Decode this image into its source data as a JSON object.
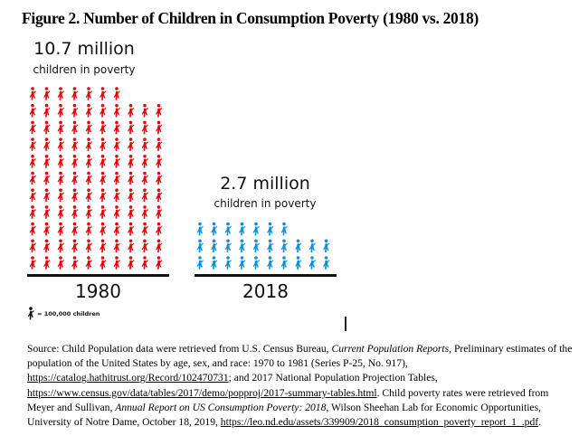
{
  "figure_title": "Figure 2. Number of Children in Consumption Poverty (1980 vs. 2018)",
  "chart_data": {
    "type": "pictogram",
    "title": "Figure 2. Number of Children in Consumption Poverty (1980 vs. 2018)",
    "unit_per_icon": 100000,
    "legend_label": "= 100,000 children",
    "icons_per_row": 10,
    "categories": [
      "1980",
      "2018"
    ],
    "series": [
      {
        "name": "1980",
        "value_millions": 10.7,
        "icon_count": 107,
        "headline": "10.7 million",
        "subheadline": "children in poverty",
        "color": "#e8000b"
      },
      {
        "name": "2018",
        "value_millions": 2.7,
        "icon_count": 27,
        "headline": "2.7 million",
        "subheadline": "children in poverty",
        "color": "#0b8fd9"
      }
    ]
  },
  "colors": {
    "red_icon": "#e8000b",
    "blue_icon": "#0b8fd9",
    "legend_icon": "#111111"
  },
  "source": {
    "prefix": "Source: Child Population data were retrieved from U.S. Census Bureau, ",
    "report_title_1": "Current Population Reports",
    "text_1": ", Preliminary estimates of the population of the United States by age, sex, and race: 1970 to 1981 (Series P-25, No. 917), ",
    "link_1": "https://catalog.hathitrust.org/Record/102470731",
    "text_2": "; and 2017 National Population Projection Tables, ",
    "link_2": "https://www.census.gov/data/tables/2017/demo/popproj/2017-summary-tables.html",
    "text_3": ". Child poverty rates were retrieved from Meyer and Sullivan, ",
    "report_title_2": "Annual Report on US Consumption Poverty: 2018",
    "text_4": ", Wilson Sheehan Lab for Economic Opportunities, University of Notre Dame, October 18, 2019, ",
    "link_3": "https://leo.nd.edu/assets/339909/2018_consumption_poverty_report_1_.pdf",
    "text_5": "."
  }
}
